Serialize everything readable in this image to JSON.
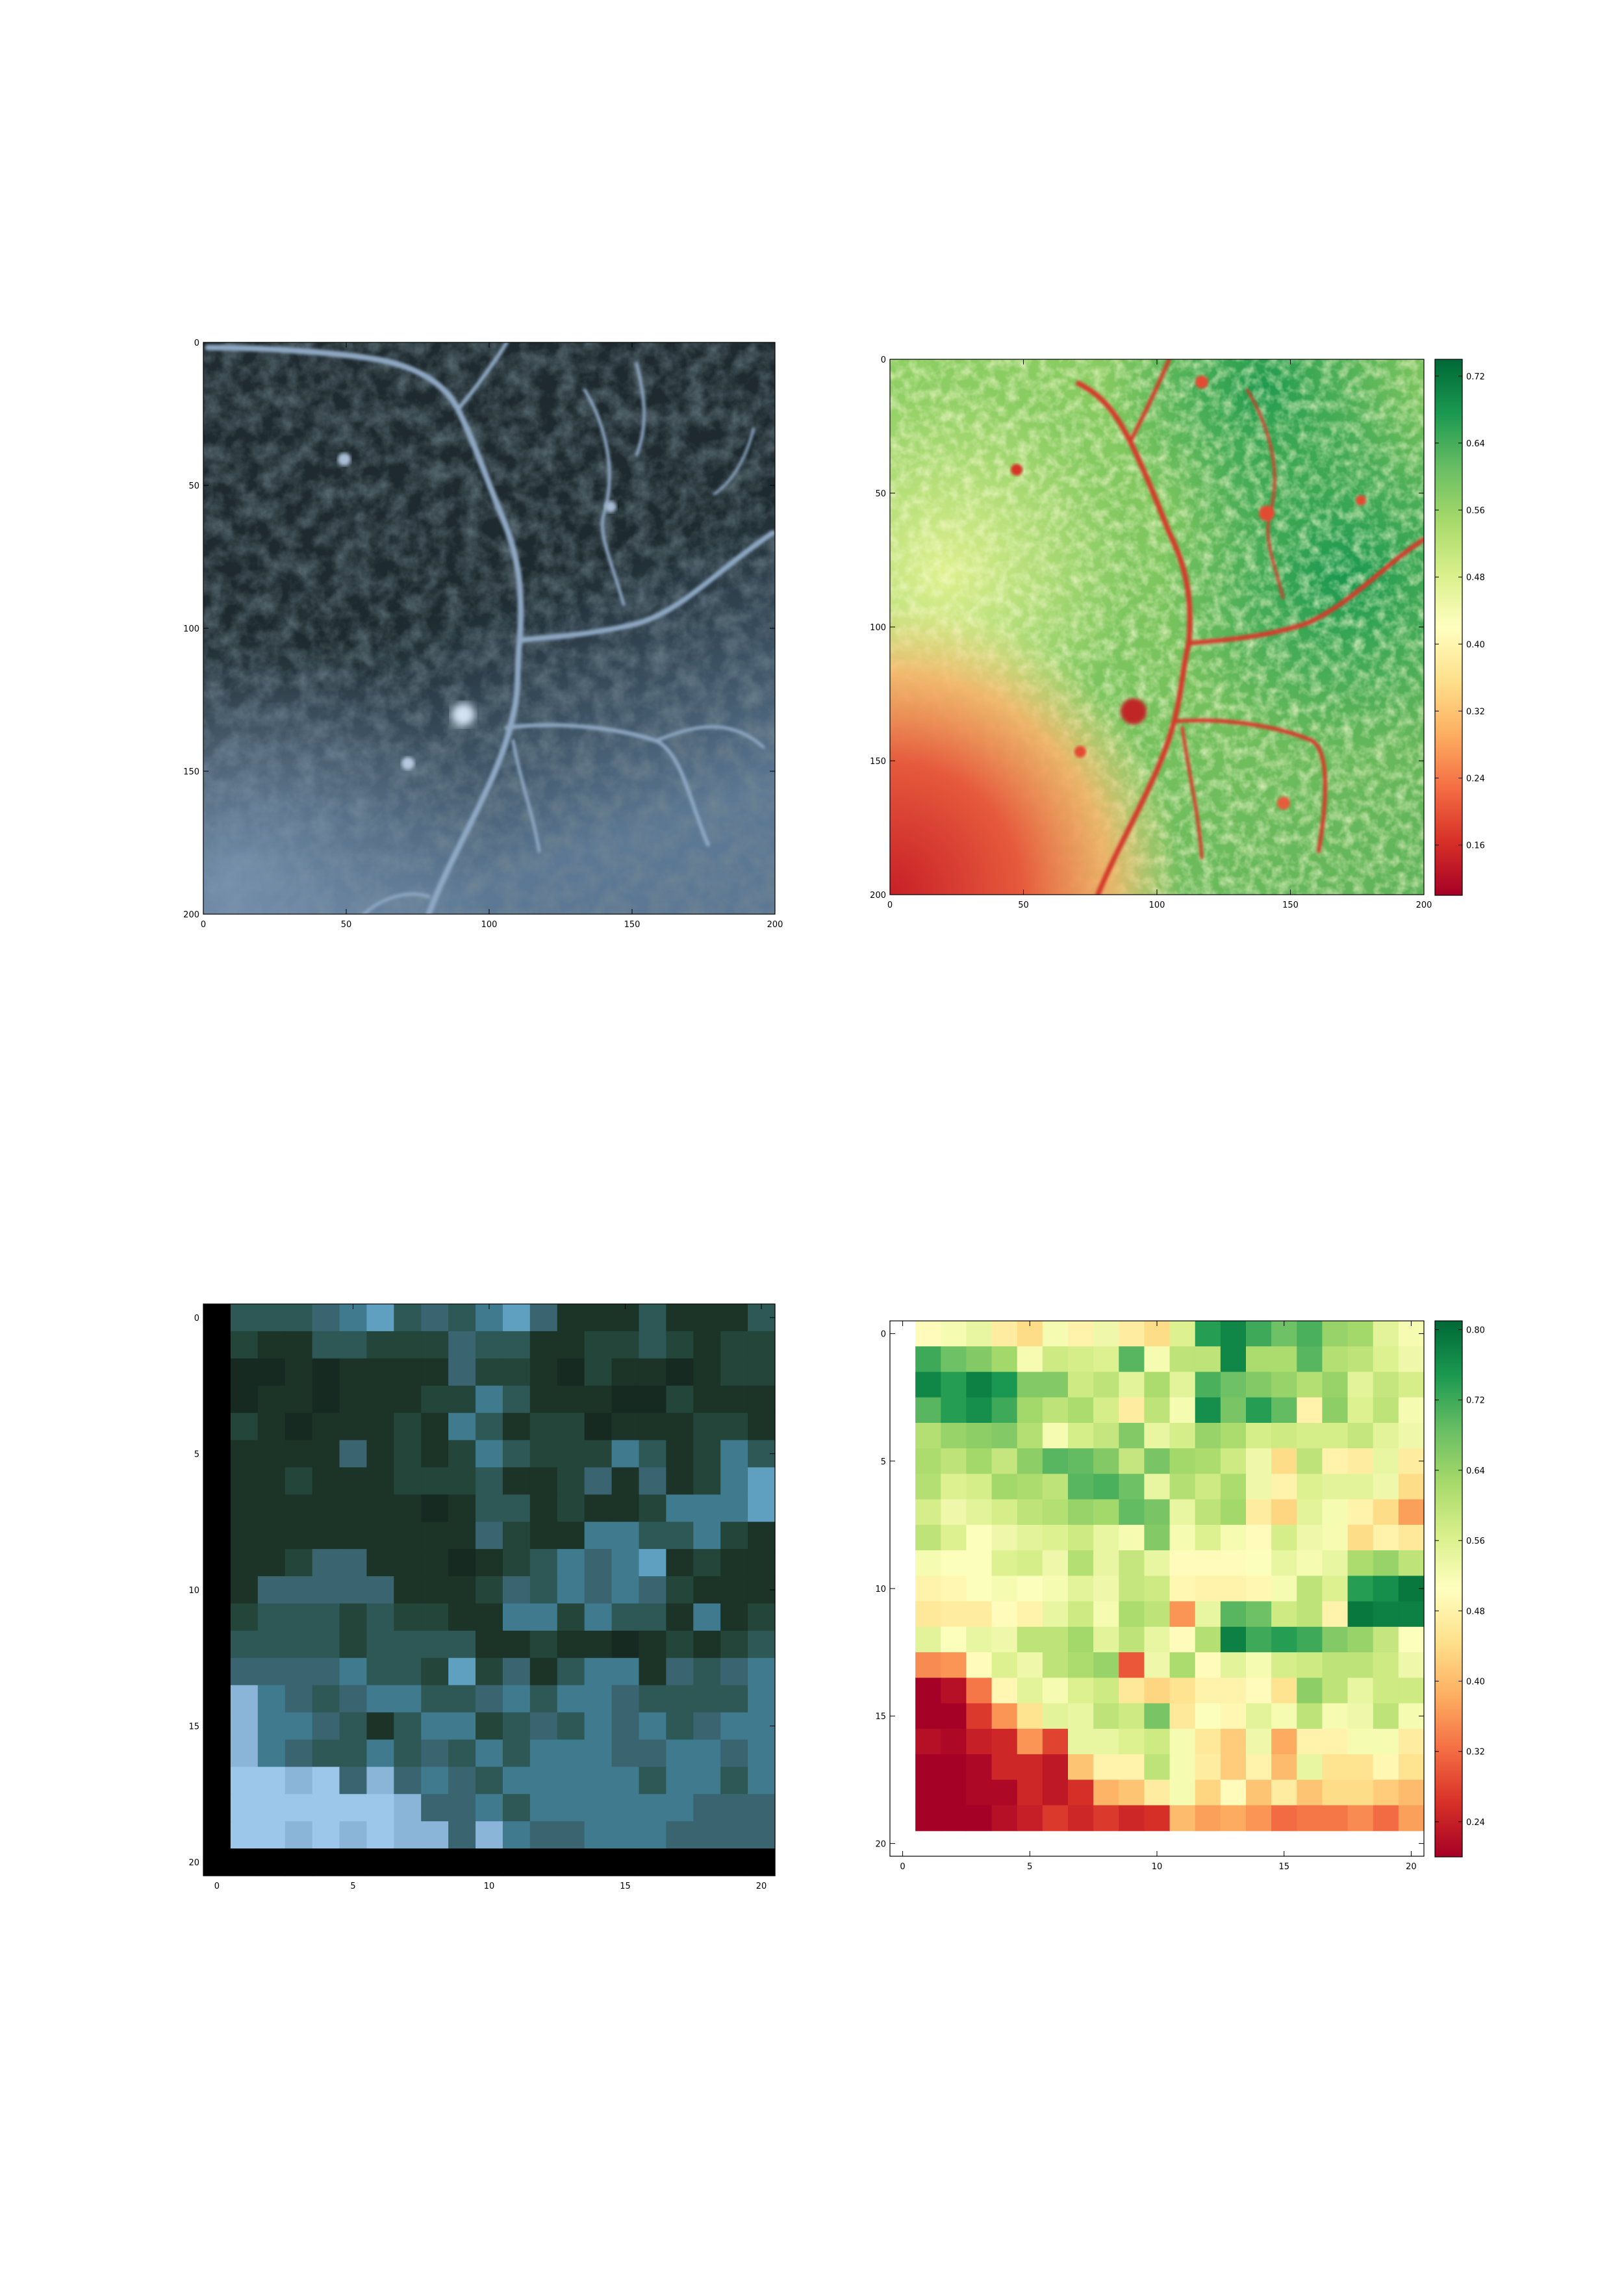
{
  "colormap": {
    "name": "RdYlGn",
    "stops": [
      "#a50026",
      "#d73027",
      "#f46d43",
      "#fdae61",
      "#fee08b",
      "#ffffbf",
      "#d9ef8b",
      "#a6d96a",
      "#66bd63",
      "#1a9850",
      "#006837"
    ]
  },
  "chart_data": [
    {
      "type": "heatmap",
      "panel": "top-left",
      "image": "rgb satellite image",
      "x_ticks": [
        "0",
        "50",
        "100",
        "150",
        "200"
      ],
      "y_ticks": [
        "0",
        "50",
        "100",
        "150",
        "200"
      ],
      "xlim": [
        0,
        200
      ],
      "ylim": [
        200,
        0
      ],
      "colorbar": false,
      "grid": false
    },
    {
      "type": "heatmap",
      "panel": "top-right",
      "image": "ndvi map",
      "x_ticks": [
        "0",
        "50",
        "100",
        "150",
        "200"
      ],
      "y_ticks": [
        "0",
        "50",
        "100",
        "150",
        "200"
      ],
      "xlim": [
        0,
        200
      ],
      "ylim": [
        200,
        0
      ],
      "colorbar": true,
      "colorbar_ticks": [
        "0.72",
        "0.64",
        "0.56",
        "0.48",
        "0.40",
        "0.32",
        "0.24",
        "0.16"
      ],
      "value_range": [
        0.1,
        0.74
      ],
      "grid": false
    },
    {
      "type": "heatmap",
      "panel": "bottom-left",
      "image": "rgb satellite image, downsampled",
      "x_ticks": [
        "0",
        "5",
        "10",
        "15",
        "20"
      ],
      "y_ticks": [
        "0",
        "5",
        "10",
        "15",
        "20"
      ],
      "xlim": [
        -0.5,
        20.5
      ],
      "ylim": [
        20.5,
        -0.5
      ],
      "colorbar": false,
      "grid": false
    },
    {
      "type": "heatmap",
      "panel": "bottom-right",
      "image": "ndvi map, downsampled",
      "x_ticks": [
        "0",
        "5",
        "10",
        "15",
        "20"
      ],
      "y_ticks": [
        "0",
        "5",
        "10",
        "15",
        "20"
      ],
      "xlim": [
        -0.5,
        20.5
      ],
      "ylim": [
        20.5,
        -0.5
      ],
      "colorbar": true,
      "colorbar_ticks": [
        "0.80",
        "0.72",
        "0.64",
        "0.56",
        "0.48",
        "0.40",
        "0.32",
        "0.24"
      ],
      "value_range": [
        0.2,
        0.81
      ],
      "grid": false,
      "values": [
        [
          0.5,
          0.52,
          0.54,
          0.47,
          0.44,
          0.52,
          0.48,
          0.53,
          0.47,
          0.44,
          0.56,
          0.74,
          0.77,
          0.72,
          0.68,
          0.71,
          0.64,
          0.63,
          0.55,
          0.52
        ],
        [
          0.72,
          0.68,
          0.66,
          0.63,
          0.52,
          0.58,
          0.57,
          0.56,
          0.7,
          0.52,
          0.6,
          0.6,
          0.77,
          0.62,
          0.62,
          0.7,
          0.61,
          0.6,
          0.56,
          0.53
        ],
        [
          0.77,
          0.74,
          0.78,
          0.75,
          0.66,
          0.66,
          0.58,
          0.6,
          0.55,
          0.62,
          0.55,
          0.71,
          0.68,
          0.66,
          0.64,
          0.61,
          0.64,
          0.55,
          0.59,
          0.57
        ],
        [
          0.7,
          0.74,
          0.76,
          0.72,
          0.63,
          0.6,
          0.62,
          0.57,
          0.47,
          0.6,
          0.52,
          0.76,
          0.67,
          0.74,
          0.69,
          0.48,
          0.65,
          0.56,
          0.6,
          0.52
        ],
        [
          0.61,
          0.64,
          0.65,
          0.66,
          0.61,
          0.52,
          0.57,
          0.59,
          0.66,
          0.54,
          0.57,
          0.64,
          0.62,
          0.57,
          0.58,
          0.57,
          0.57,
          0.59,
          0.55,
          0.53
        ],
        [
          0.62,
          0.6,
          0.63,
          0.59,
          0.65,
          0.7,
          0.69,
          0.66,
          0.59,
          0.67,
          0.63,
          0.62,
          0.58,
          0.53,
          0.44,
          0.6,
          0.48,
          0.47,
          0.54,
          0.47
        ],
        [
          0.61,
          0.56,
          0.57,
          0.63,
          0.62,
          0.6,
          0.7,
          0.71,
          0.68,
          0.54,
          0.61,
          0.58,
          0.62,
          0.53,
          0.48,
          0.56,
          0.55,
          0.55,
          0.53,
          0.44
        ],
        [
          0.57,
          0.53,
          0.55,
          0.57,
          0.6,
          0.61,
          0.64,
          0.63,
          0.69,
          0.67,
          0.54,
          0.6,
          0.63,
          0.47,
          0.43,
          0.55,
          0.52,
          0.48,
          0.44,
          0.37
        ],
        [
          0.6,
          0.56,
          0.51,
          0.53,
          0.55,
          0.56,
          0.58,
          0.54,
          0.52,
          0.66,
          0.52,
          0.56,
          0.52,
          0.5,
          0.57,
          0.53,
          0.52,
          0.44,
          0.48,
          0.46
        ],
        [
          0.52,
          0.51,
          0.51,
          0.56,
          0.57,
          0.53,
          0.61,
          0.54,
          0.59,
          0.54,
          0.5,
          0.5,
          0.5,
          0.51,
          0.54,
          0.52,
          0.54,
          0.62,
          0.64,
          0.6
        ],
        [
          0.48,
          0.49,
          0.51,
          0.52,
          0.51,
          0.52,
          0.55,
          0.53,
          0.59,
          0.58,
          0.49,
          0.48,
          0.48,
          0.49,
          0.52,
          0.6,
          0.56,
          0.74,
          0.76,
          0.79
        ],
        [
          0.46,
          0.47,
          0.47,
          0.5,
          0.48,
          0.54,
          0.58,
          0.52,
          0.62,
          0.6,
          0.36,
          0.54,
          0.7,
          0.68,
          0.58,
          0.6,
          0.48,
          0.79,
          0.78,
          0.78
        ],
        [
          0.55,
          0.51,
          0.54,
          0.53,
          0.6,
          0.6,
          0.63,
          0.55,
          0.6,
          0.54,
          0.5,
          0.61,
          0.78,
          0.72,
          0.74,
          0.72,
          0.66,
          0.64,
          0.59,
          0.51
        ],
        [
          0.35,
          0.36,
          0.5,
          0.56,
          0.53,
          0.6,
          0.62,
          0.64,
          0.3,
          0.53,
          0.62,
          0.5,
          0.55,
          0.52,
          0.57,
          0.58,
          0.6,
          0.6,
          0.58,
          0.53
        ],
        [
          0.2,
          0.22,
          0.33,
          0.49,
          0.55,
          0.52,
          0.56,
          0.58,
          0.46,
          0.43,
          0.45,
          0.48,
          0.48,
          0.5,
          0.45,
          0.65,
          0.6,
          0.54,
          0.58,
          0.58
        ],
        [
          0.19,
          0.2,
          0.27,
          0.36,
          0.45,
          0.55,
          0.54,
          0.6,
          0.58,
          0.67,
          0.46,
          0.51,
          0.49,
          0.55,
          0.52,
          0.6,
          0.52,
          0.53,
          0.6,
          0.52
        ],
        [
          0.22,
          0.21,
          0.24,
          0.25,
          0.36,
          0.28,
          0.54,
          0.54,
          0.56,
          0.58,
          0.52,
          0.46,
          0.42,
          0.53,
          0.38,
          0.48,
          0.48,
          0.52,
          0.52,
          0.47
        ],
        [
          0.19,
          0.2,
          0.21,
          0.25,
          0.25,
          0.23,
          0.41,
          0.48,
          0.48,
          0.6,
          0.52,
          0.47,
          0.42,
          0.48,
          0.4,
          0.54,
          0.45,
          0.45,
          0.49,
          0.45
        ],
        [
          0.2,
          0.19,
          0.21,
          0.21,
          0.25,
          0.23,
          0.26,
          0.39,
          0.41,
          0.47,
          0.52,
          0.43,
          0.5,
          0.41,
          0.47,
          0.41,
          0.44,
          0.44,
          0.42,
          0.4
        ],
        [
          0.18,
          0.2,
          0.19,
          0.22,
          0.24,
          0.27,
          0.25,
          0.27,
          0.25,
          0.26,
          0.4,
          0.37,
          0.38,
          0.36,
          0.32,
          0.33,
          0.33,
          0.35,
          0.32,
          0.37
        ]
      ]
    }
  ]
}
